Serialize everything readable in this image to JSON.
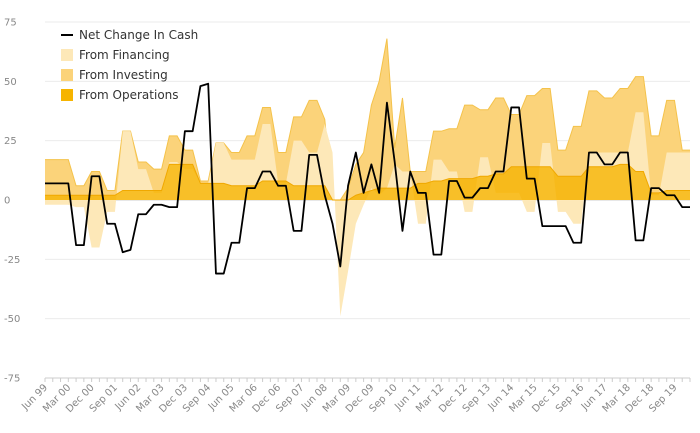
{
  "chart_data": {
    "type": "area",
    "yticks": [
      "75",
      "50",
      "25",
      "0",
      "-25",
      "-50",
      "-75"
    ],
    "ylim": [
      -75,
      75
    ],
    "x_tick_labels": [
      "Jun 99",
      "Mar 00",
      "Dec 00",
      "Sep 01",
      "Jun 02",
      "Mar 03",
      "Dec 03",
      "Sep 04",
      "Jun 05",
      "Mar 06",
      "Dec 06",
      "Sep 07",
      "Jun 08",
      "Mar 09",
      "Dec 09",
      "Sep 10",
      "Jun 11",
      "Mar 12",
      "Dec 12",
      "Sep 13",
      "Jun 14",
      "Mar 15",
      "Dec 15",
      "Sep 16",
      "Jun 17",
      "Mar 18",
      "Dec 18",
      "Sep 19"
    ],
    "grid": true,
    "legend_position": "top-left",
    "series": [
      {
        "name": "Net Change In Cash",
        "kind": "line",
        "color": "#000000",
        "values": [
          7,
          7,
          7,
          7,
          -19,
          -19,
          10,
          10,
          -10,
          -10,
          -22,
          -21,
          -6,
          -6,
          -2,
          -2,
          -3,
          -3,
          29,
          29,
          48,
          49,
          -31,
          -31,
          -18,
          -18,
          5,
          5,
          12,
          12,
          6,
          6,
          -13,
          -13,
          19,
          19,
          2,
          -10,
          -28,
          6,
          20,
          3,
          15,
          3,
          41,
          16,
          -13,
          12,
          3,
          3,
          -23,
          -23,
          8,
          8,
          1,
          1,
          5,
          5,
          12,
          12,
          39,
          39,
          9,
          9,
          -11,
          -11,
          -11,
          -11,
          -18,
          -18,
          20,
          20,
          15,
          15,
          20,
          20,
          -17,
          -17,
          5,
          5,
          2,
          2,
          -3,
          -3
        ]
      },
      {
        "name": "From Financing",
        "kind": "area",
        "color": "#fde8b8",
        "values": [
          -2,
          -2,
          -2,
          -2,
          -3,
          -3,
          -20,
          -20,
          -5,
          -5,
          29,
          29,
          13,
          13,
          3,
          3,
          16,
          16,
          13,
          13,
          7,
          7,
          24,
          24,
          17,
          17,
          17,
          17,
          32,
          32,
          7,
          7,
          25,
          25,
          20,
          20,
          32,
          20,
          -49,
          -30,
          -10,
          -2,
          5,
          2,
          5,
          15,
          12,
          12,
          -10,
          -10,
          17,
          17,
          12,
          12,
          -5,
          -5,
          18,
          18,
          3,
          3,
          3,
          3,
          -5,
          -5,
          24,
          24,
          -5,
          -5,
          -10,
          -10,
          20,
          20,
          20,
          20,
          20,
          20,
          37,
          37,
          2,
          2,
          20,
          20,
          20,
          20
        ]
      },
      {
        "name": "From Investing",
        "kind": "area",
        "color": "#fbd37a",
        "values": [
          17,
          17,
          17,
          17,
          6,
          6,
          12,
          12,
          4,
          4,
          29,
          29,
          16,
          16,
          13,
          13,
          27,
          27,
          21,
          21,
          8,
          8,
          24,
          24,
          20,
          20,
          27,
          27,
          39,
          39,
          20,
          20,
          35,
          35,
          42,
          42,
          34,
          0,
          0,
          5,
          15,
          20,
          40,
          50,
          68,
          22,
          43,
          12,
          12,
          12,
          29,
          29,
          30,
          30,
          40,
          40,
          38,
          38,
          43,
          43,
          36,
          36,
          44,
          44,
          47,
          47,
          21,
          21,
          31,
          31,
          46,
          46,
          43,
          43,
          47,
          47,
          52,
          52,
          27,
          27,
          42,
          42,
          21,
          21
        ]
      },
      {
        "name": "From Operations",
        "kind": "area",
        "color": "#f6b400",
        "values": [
          2,
          2,
          2,
          2,
          2,
          2,
          2,
          2,
          2,
          2,
          4,
          4,
          4,
          4,
          4,
          4,
          15,
          15,
          15,
          15,
          7,
          7,
          7,
          7,
          6,
          6,
          6,
          6,
          8,
          8,
          8,
          8,
          6,
          6,
          6,
          6,
          6,
          0,
          0,
          0,
          2,
          3,
          4,
          5,
          5,
          5,
          5,
          5,
          7,
          7,
          8,
          8,
          9,
          9,
          9,
          9,
          10,
          10,
          11,
          11,
          14,
          14,
          14,
          14,
          14,
          14,
          10,
          10,
          10,
          10,
          14,
          14,
          14,
          14,
          15,
          15,
          12,
          12,
          3,
          3,
          4,
          4,
          4,
          4
        ]
      }
    ]
  }
}
